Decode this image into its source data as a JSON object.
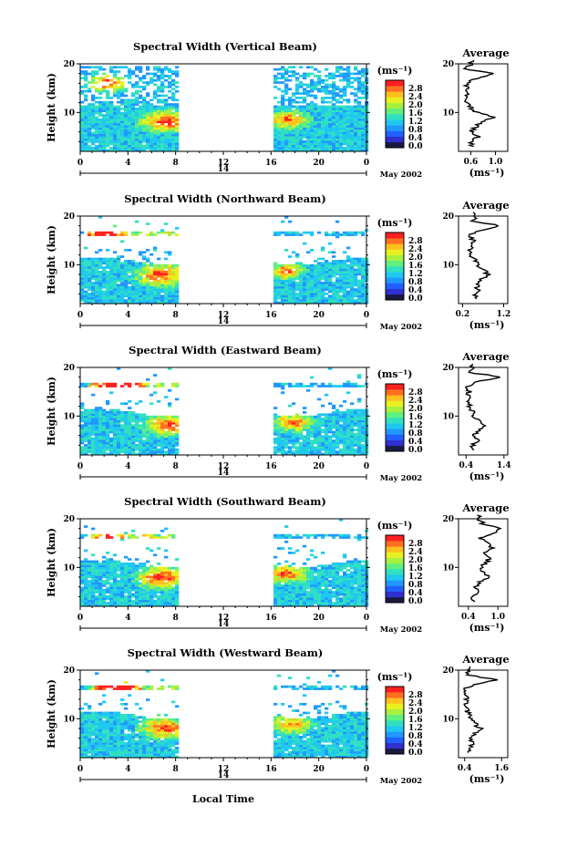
{
  "common": {
    "date_label": "May 2002",
    "day_label": "14",
    "units_label": "(ms⁻¹)",
    "ylabel": "Height (km)",
    "xlabel_bottom": "Local Time",
    "avg_title": "Average",
    "avg_xlabel": "(ms⁻¹)"
  },
  "colorbar": {
    "ticks": [
      "2.8",
      "2.4",
      "2.0",
      "1.6",
      "1.2",
      "0.8",
      "0.4",
      "0.0"
    ],
    "colors": [
      "#1a1a40",
      "#3030d0",
      "#2060ff",
      "#2098ff",
      "#20c8f0",
      "#30e0c0",
      "#60f080",
      "#a8f040",
      "#e8f020",
      "#ffc020",
      "#ff7020",
      "#ff2020"
    ]
  },
  "chart_data": [
    {
      "type": "heatmap",
      "title": "Spectral Width (Vertical Beam)",
      "x_ticks": [
        "0",
        "4",
        "8",
        "12",
        "16",
        "20",
        "0"
      ],
      "y_ticks": [
        "20",
        "10"
      ],
      "xlim": [
        0,
        24
      ],
      "ylim": [
        2,
        20
      ],
      "data_gaps": [
        [
          8.5,
          16
        ]
      ],
      "average_profile": {
        "title": "Average",
        "x_ticks": [
          "0.6",
          "1.0"
        ],
        "xlim": [
          0.4,
          1.2
        ],
        "y_ticks": [
          "20",
          "10"
        ],
        "heights": [
          3,
          4,
          5,
          6,
          7,
          8,
          9,
          10,
          11,
          12,
          13,
          14,
          15,
          16,
          17,
          18,
          19,
          20
        ],
        "values": [
          0.62,
          0.6,
          0.72,
          0.6,
          0.68,
          0.78,
          0.98,
          0.7,
          0.6,
          0.55,
          0.52,
          0.52,
          0.58,
          0.5,
          0.68,
          1.0,
          0.5,
          0.62
        ]
      }
    },
    {
      "type": "heatmap",
      "title": "Spectral Width (Northward Beam)",
      "x_ticks": [
        "0",
        "4",
        "8",
        "12",
        "16",
        "20",
        "0"
      ],
      "y_ticks": [
        "20",
        "10"
      ],
      "xlim": [
        0,
        24
      ],
      "ylim": [
        2,
        20
      ],
      "data_gaps": [
        [
          8.5,
          16
        ]
      ],
      "average_profile": {
        "title": "Average",
        "x_ticks": [
          "0.2",
          "1.2"
        ],
        "xlim": [
          0.1,
          1.3
        ],
        "y_ticks": [
          "20",
          "10"
        ],
        "heights": [
          3,
          4,
          5,
          6,
          7,
          8,
          9,
          10,
          11,
          12,
          13,
          14,
          15,
          16,
          17,
          18,
          19,
          20
        ],
        "values": [
          0.55,
          0.5,
          0.58,
          0.52,
          0.65,
          0.82,
          0.7,
          0.55,
          0.48,
          0.42,
          0.4,
          0.38,
          0.45,
          0.35,
          0.6,
          1.1,
          0.45,
          0.5
        ]
      }
    },
    {
      "type": "heatmap",
      "title": "Spectral Width (Eastward Beam)",
      "x_ticks": [
        "0",
        "4",
        "8",
        "12",
        "16",
        "20",
        "0"
      ],
      "y_ticks": [
        "20",
        "10"
      ],
      "xlim": [
        0,
        24
      ],
      "ylim": [
        2,
        20
      ],
      "data_gaps": [
        [
          8.5,
          16
        ]
      ],
      "average_profile": {
        "title": "Average",
        "x_ticks": [
          "0.4",
          "1.4"
        ],
        "xlim": [
          0.2,
          1.5
        ],
        "y_ticks": [
          "20",
          "10"
        ],
        "heights": [
          3,
          4,
          5,
          6,
          7,
          8,
          9,
          10,
          11,
          12,
          13,
          14,
          15,
          16,
          17,
          18,
          19,
          20
        ],
        "values": [
          0.6,
          0.58,
          0.72,
          0.62,
          0.75,
          0.9,
          0.78,
          0.62,
          0.55,
          0.48,
          0.46,
          0.44,
          0.5,
          0.42,
          0.7,
          1.3,
          0.5,
          0.55
        ]
      }
    },
    {
      "type": "heatmap",
      "title": "Spectral Width (Southward Beam)",
      "x_ticks": [
        "0",
        "4",
        "8",
        "12",
        "16",
        "20",
        "0"
      ],
      "y_ticks": [
        "20",
        "10"
      ],
      "xlim": [
        0,
        24
      ],
      "ylim": [
        2,
        20
      ],
      "data_gaps": [
        [
          8.5,
          16
        ]
      ],
      "average_profile": {
        "title": "Average",
        "x_ticks": [
          "0.4",
          "1.0"
        ],
        "xlim": [
          0.2,
          1.2
        ],
        "y_ticks": [
          "20",
          "10"
        ],
        "heights": [
          3,
          4,
          5,
          6,
          7,
          8,
          9,
          10,
          11,
          12,
          13,
          14,
          15,
          16,
          17,
          18,
          19,
          20
        ],
        "values": [
          0.48,
          0.5,
          0.6,
          0.55,
          0.65,
          0.85,
          0.72,
          0.68,
          0.75,
          0.85,
          0.7,
          0.9,
          0.8,
          0.65,
          0.95,
          1.05,
          0.7,
          0.6
        ]
      }
    },
    {
      "type": "heatmap",
      "title": "Spectral Width (Westward Beam)",
      "x_ticks": [
        "0",
        "4",
        "8",
        "12",
        "16",
        "20",
        "0"
      ],
      "y_ticks": [
        "20",
        "10"
      ],
      "xlim": [
        0,
        24
      ],
      "ylim": [
        2,
        20
      ],
      "data_gaps": [
        [
          8.5,
          16
        ]
      ],
      "xlabel": "Local Time",
      "average_profile": {
        "title": "Average",
        "x_ticks": [
          "0.4",
          "1.6"
        ],
        "xlim": [
          0.2,
          1.8
        ],
        "y_ticks": [
          "20",
          "10"
        ],
        "heights": [
          3,
          4,
          5,
          6,
          7,
          8,
          9,
          10,
          11,
          12,
          13,
          14,
          15,
          16,
          17,
          18,
          19,
          20
        ],
        "values": [
          0.55,
          0.52,
          0.68,
          0.6,
          0.75,
          0.9,
          0.72,
          0.6,
          0.52,
          0.46,
          0.44,
          0.42,
          0.48,
          0.4,
          0.65,
          1.4,
          0.5,
          0.52
        ]
      }
    }
  ]
}
